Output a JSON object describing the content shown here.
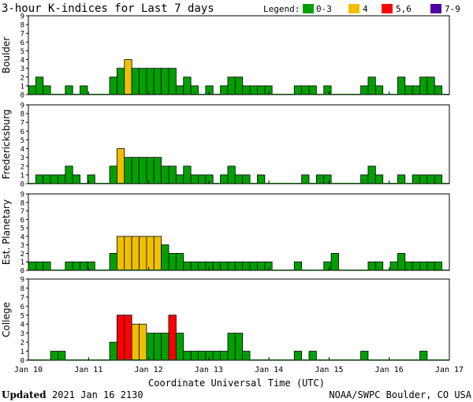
{
  "title": "3-hour K-indices for Last 7 days",
  "legend": {
    "label": "Legend:",
    "items": [
      {
        "label": "0-3",
        "color": "#00a000"
      },
      {
        "label": "4",
        "color": "#f0c000"
      },
      {
        "label": "5,6",
        "color": "#ff0000"
      },
      {
        "label": "7-9",
        "color": "#5000a0"
      }
    ]
  },
  "footer": {
    "updated_label": "Updated",
    "updated_value": "2021 Jan 16 2130",
    "source": "NOAA/SWPC Boulder, CO USA"
  },
  "chart_data": [
    {
      "type": "bar",
      "ylabel": "Boulder",
      "ylim": [
        0,
        9
      ],
      "yticks": [
        "0",
        "1",
        "2",
        "3",
        "4",
        "5",
        "6",
        "7",
        "8",
        "9"
      ],
      "xlabel": "Coordinate Universal Time (UTC)",
      "xticks": [
        "Jan 10",
        "Jan 11",
        "Jan 12",
        "Jan 13",
        "Jan 14",
        "Jan 15",
        "Jan 16",
        "Jan 17"
      ],
      "values": [
        1,
        2,
        1,
        0,
        0,
        1,
        0,
        1,
        0,
        0,
        0,
        2,
        3,
        4,
        3,
        3,
        3,
        3,
        3,
        3,
        1,
        2,
        1,
        0,
        1,
        0,
        1,
        2,
        2,
        1,
        1,
        1,
        1,
        0,
        0,
        0,
        1,
        1,
        1,
        0,
        1,
        0,
        0,
        0,
        0,
        1,
        2,
        1,
        0,
        0,
        2,
        1,
        1,
        2,
        2,
        1,
        0
      ]
    },
    {
      "type": "bar",
      "ylabel": "Fredericksburg",
      "ylim": [
        0,
        9
      ],
      "yticks": [
        "0",
        "1",
        "2",
        "3",
        "4",
        "5",
        "6",
        "7",
        "8",
        "9"
      ],
      "xlabel": "Coordinate Universal Time (UTC)",
      "xticks": [
        "Jan 10",
        "Jan 11",
        "Jan 12",
        "Jan 13",
        "Jan 14",
        "Jan 15",
        "Jan 16",
        "Jan 17"
      ],
      "values": [
        0,
        1,
        1,
        1,
        1,
        2,
        1,
        0,
        1,
        0,
        0,
        2,
        4,
        3,
        3,
        3,
        3,
        3,
        2,
        2,
        1,
        2,
        1,
        1,
        1,
        0,
        1,
        2,
        1,
        1,
        0,
        1,
        0,
        0,
        0,
        0,
        0,
        1,
        0,
        1,
        1,
        0,
        0,
        0,
        0,
        1,
        2,
        1,
        0,
        0,
        1,
        0,
        1,
        1,
        1,
        1,
        0
      ]
    },
    {
      "type": "bar",
      "ylabel": "Est. Planetary",
      "ylim": [
        0,
        9
      ],
      "yticks": [
        "0",
        "1",
        "2",
        "3",
        "4",
        "5",
        "6",
        "7",
        "8",
        "9"
      ],
      "xlabel": "Coordinate Universal Time (UTC)",
      "xticks": [
        "Jan 10",
        "Jan 11",
        "Jan 12",
        "Jan 13",
        "Jan 14",
        "Jan 15",
        "Jan 16",
        "Jan 17"
      ],
      "values": [
        1,
        1,
        1,
        0,
        0,
        1,
        1,
        1,
        1,
        0,
        0,
        2,
        4,
        4,
        4,
        4,
        4,
        4,
        3,
        2,
        2,
        1,
        1,
        1,
        1,
        1,
        1,
        1,
        1,
        1,
        1,
        1,
        1,
        0,
        0,
        0,
        1,
        0,
        0,
        0,
        1,
        2,
        0,
        0,
        0,
        0,
        1,
        1,
        0,
        1,
        2,
        1,
        1,
        1,
        1,
        1,
        0
      ]
    },
    {
      "type": "bar",
      "ylabel": "College",
      "ylim": [
        0,
        9
      ],
      "yticks": [
        "0",
        "1",
        "2",
        "3",
        "4",
        "5",
        "6",
        "7",
        "8",
        "9"
      ],
      "xlabel": "Coordinate Universal Time (UTC)",
      "xticks": [
        "Jan 10",
        "Jan 11",
        "Jan 12",
        "Jan 13",
        "Jan 14",
        "Jan 15",
        "Jan 16",
        "Jan 17"
      ],
      "values": [
        0,
        0,
        0,
        1,
        1,
        0,
        0,
        0,
        0,
        0,
        0,
        2,
        5,
        5,
        4,
        4,
        3,
        3,
        3,
        5,
        3,
        1,
        1,
        1,
        1,
        1,
        1,
        3,
        3,
        1,
        0,
        0,
        0,
        0,
        0,
        0,
        1,
        0,
        1,
        0,
        0,
        0,
        0,
        0,
        0,
        1,
        0,
        0,
        0,
        0,
        0,
        0,
        0,
        1,
        0,
        0,
        0
      ]
    }
  ]
}
